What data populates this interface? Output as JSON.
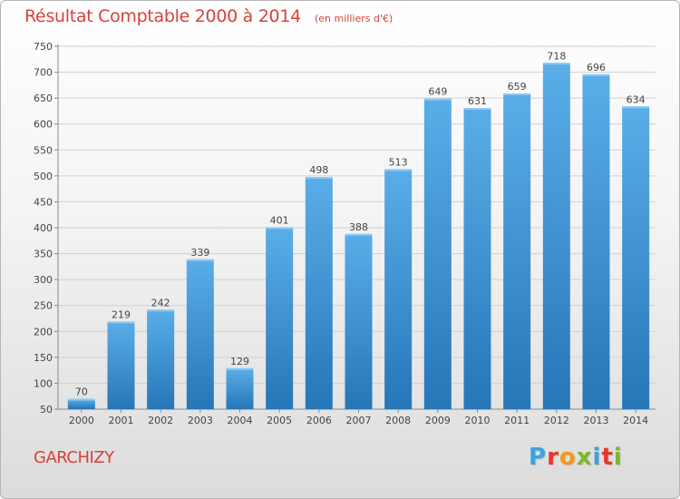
{
  "header": {
    "title": "Résultat Comptable 2000 à 2014",
    "subtitle": "(en milliers d'€)"
  },
  "footer": {
    "town": "GARCHIZY",
    "logo_letters": [
      "P",
      "r",
      "o",
      "x",
      "i",
      "t",
      "i"
    ],
    "logo_colors": [
      "#3aa3df",
      "#e8372c",
      "#f29a1b",
      "#7cb82f",
      "#3aa3df",
      "#e8372c",
      "#7cb82f"
    ]
  },
  "chart_data": {
    "type": "bar",
    "title": "Résultat Comptable 2000 à 2014",
    "xlabel": "",
    "ylabel": "(en milliers d'€)",
    "categories": [
      "2000",
      "2001",
      "2002",
      "2003",
      "2004",
      "2005",
      "2006",
      "2007",
      "2008",
      "2009",
      "2010",
      "2011",
      "2012",
      "2013",
      "2014"
    ],
    "values": [
      70,
      219,
      242,
      339,
      129,
      401,
      498,
      388,
      513,
      649,
      631,
      659,
      718,
      696,
      634
    ],
    "ylim": [
      50,
      750
    ],
    "yticks": [
      50,
      100,
      150,
      200,
      250,
      300,
      350,
      400,
      450,
      500,
      550,
      600,
      650,
      700,
      750
    ],
    "grid": true,
    "bar_color_top": "#5aaee8",
    "bar_color_bottom": "#2676b8",
    "gridline_color": "#d0d0d0"
  }
}
